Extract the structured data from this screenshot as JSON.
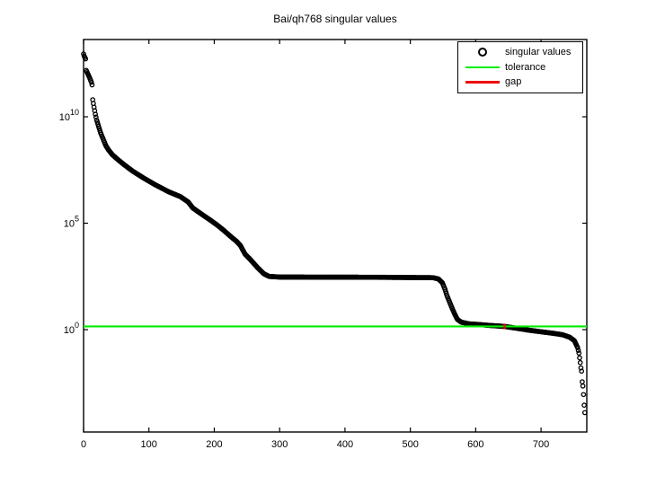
{
  "title": "Bai/qh768 singular values",
  "legend": {
    "items": [
      {
        "label": "singular values",
        "marker": "circle",
        "color": "#000000"
      },
      {
        "label": "tolerance",
        "marker": "line",
        "color": "#00ee00"
      },
      {
        "label": "gap",
        "marker": "line",
        "color": "#ee0000"
      }
    ],
    "position": "top-right"
  },
  "chart_data": {
    "type": "scatter",
    "title": "Bai/qh768 singular values",
    "xlabel": "",
    "ylabel": "",
    "grid": false,
    "legend_position": "top-right",
    "marker": "o",
    "marker_color": "#000000",
    "background": "#ffffff",
    "x_ticks": [
      0,
      100,
      200,
      300,
      400,
      500,
      600,
      700
    ],
    "xlim": [
      0,
      770
    ],
    "y_scale": "log10",
    "y_tick_exponents": [
      10,
      5,
      0
    ],
    "ylim_log10": [
      -4.81,
      13.63
    ],
    "n_points": 768,
    "series_name": "singular values",
    "series_profile_log10": [
      [
        0,
        12.95
      ],
      [
        1,
        12.85
      ],
      [
        3,
        12.72
      ],
      [
        4,
        12.18
      ],
      [
        6,
        12.05
      ],
      [
        9,
        11.85
      ],
      [
        12,
        11.62
      ],
      [
        13,
        11.5
      ],
      [
        14,
        10.8
      ],
      [
        16,
        10.45
      ],
      [
        18,
        10.12
      ],
      [
        20,
        9.85
      ],
      [
        23,
        9.55
      ],
      [
        26,
        9.25
      ],
      [
        30,
        8.95
      ],
      [
        34,
        8.65
      ],
      [
        38,
        8.45
      ],
      [
        44,
        8.22
      ],
      [
        52,
        8.0
      ],
      [
        62,
        7.75
      ],
      [
        75,
        7.45
      ],
      [
        92,
        7.12
      ],
      [
        110,
        6.8
      ],
      [
        130,
        6.48
      ],
      [
        148,
        6.25
      ],
      [
        160,
        6.0
      ],
      [
        167,
        5.72
      ],
      [
        178,
        5.48
      ],
      [
        196,
        5.1
      ],
      [
        205,
        4.9
      ],
      [
        215,
        4.65
      ],
      [
        226,
        4.35
      ],
      [
        234,
        4.15
      ],
      [
        240,
        3.95
      ],
      [
        247,
        3.55
      ],
      [
        255,
        3.3
      ],
      [
        266,
        2.92
      ],
      [
        276,
        2.62
      ],
      [
        284,
        2.5
      ],
      [
        300,
        2.47
      ],
      [
        450,
        2.46
      ],
      [
        535,
        2.44
      ],
      [
        543,
        2.38
      ],
      [
        549,
        2.2
      ],
      [
        553,
        1.9
      ],
      [
        556,
        1.6
      ],
      [
        560,
        1.3
      ],
      [
        564,
        1.0
      ],
      [
        568,
        0.72
      ],
      [
        572,
        0.48
      ],
      [
        578,
        0.35
      ],
      [
        590,
        0.27
      ],
      [
        605,
        0.24
      ],
      [
        620,
        0.2
      ],
      [
        635,
        0.17
      ],
      [
        644,
        0.15
      ],
      [
        655,
        0.1
      ],
      [
        668,
        0.04
      ],
      [
        680,
        -0.02
      ],
      [
        700,
        -0.1
      ],
      [
        718,
        -0.17
      ],
      [
        733,
        -0.24
      ],
      [
        744,
        -0.36
      ],
      [
        751,
        -0.52
      ],
      [
        756,
        -0.85
      ],
      [
        758,
        -1.1
      ],
      [
        760,
        -1.55
      ],
      [
        761,
        -1.8
      ],
      [
        762,
        -1.95
      ],
      [
        763,
        -2.45
      ],
      [
        764,
        -2.65
      ],
      [
        765,
        -3.05
      ],
      [
        766,
        -3.55
      ],
      [
        767,
        -3.9
      ]
    ],
    "tolerance": {
      "value": 1.4,
      "value_log10": 0.15,
      "color": "#00ee00"
    },
    "gap": {
      "x_index": 644,
      "y_log10_range": [
        0.02,
        0.28
      ],
      "color": "#ee0000"
    }
  }
}
